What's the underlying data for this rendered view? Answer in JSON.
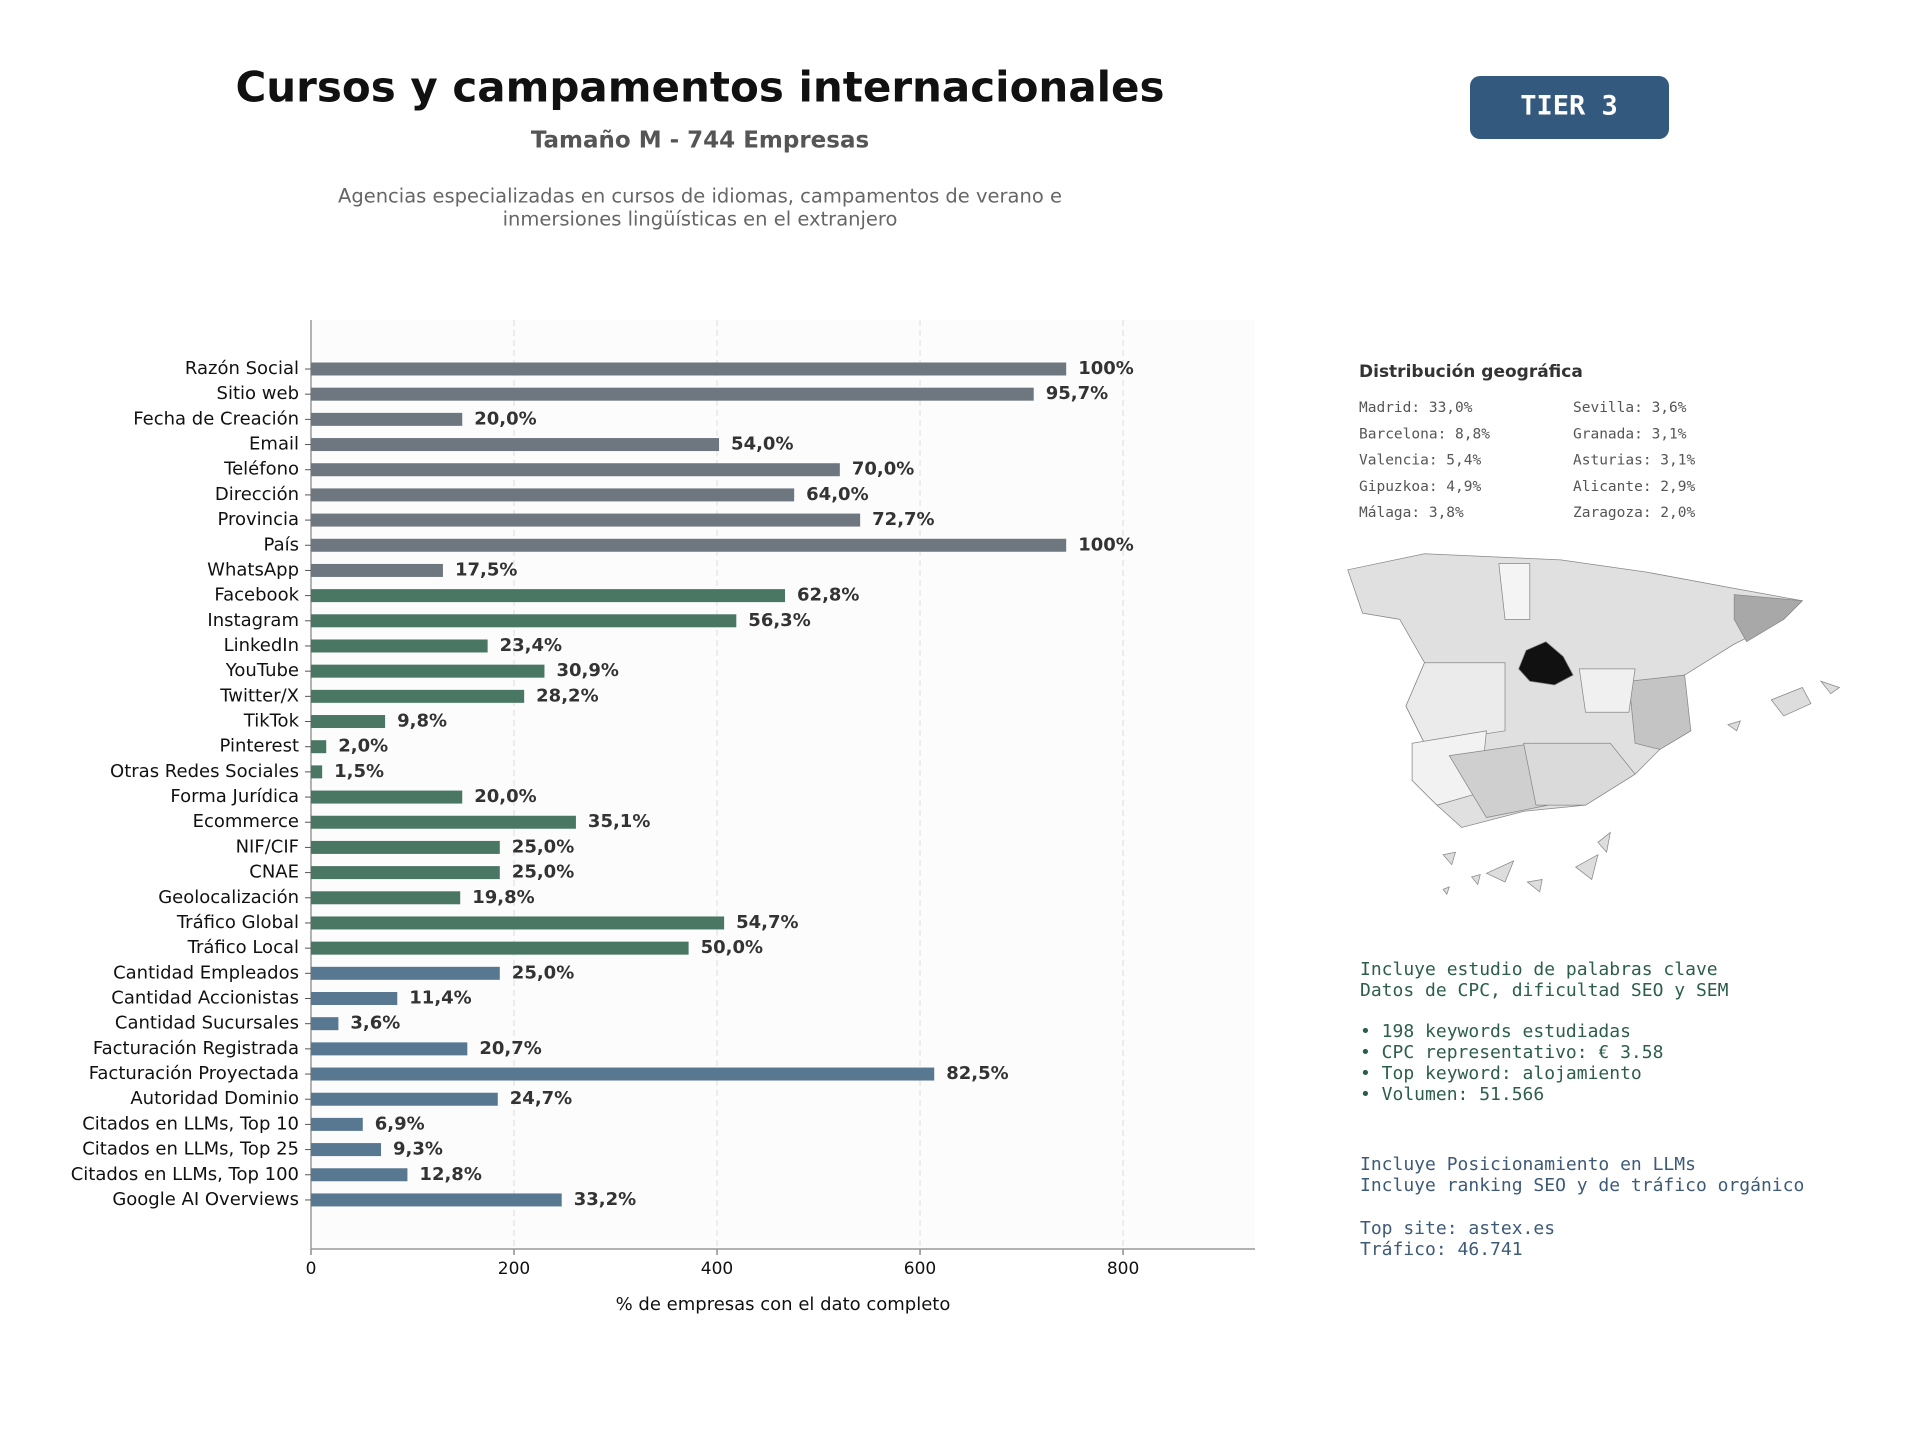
{
  "chart_data": {
    "type": "bar",
    "orientation": "horizontal",
    "title": "Cursos y campamentos internacionales",
    "subtitle": "Tamaño M - 744 Empresas",
    "description": [
      "Agencias especializadas en cursos de idiomas, campamentos de verano e",
      "inmersiones lingüísticas en el extranjero"
    ],
    "categories": [
      "Razón Social",
      "Sitio web",
      "Fecha de Creación",
      "Email",
      "Teléfono",
      "Dirección",
      "Provincia",
      "País",
      "WhatsApp",
      "Facebook",
      "Instagram",
      "LinkedIn",
      "YouTube",
      "Twitter/X",
      "TikTok",
      "Pinterest",
      "Otras Redes Sociales",
      "Forma Jurídica",
      "Ecommerce",
      "NIF/CIF",
      "CNAE",
      "Geolocalización",
      "Tráfico Global",
      "Tráfico Local",
      "Cantidad Empleados",
      "Cantidad Accionistas",
      "Cantidad Sucursales",
      "Facturación Registrada",
      "Facturación Proyectada",
      "Autoridad Dominio",
      "Citados en LLMs, Top 10",
      "Citados en LLMs, Top 25",
      "Citados en LLMs, Top 100",
      "Google AI Overviews"
    ],
    "values": [
      744,
      712,
      149,
      402,
      521,
      476,
      541,
      744,
      130,
      467,
      419,
      174,
      230,
      210,
      73,
      15,
      11,
      149,
      261,
      186,
      186,
      147,
      407,
      372,
      186,
      85,
      27,
      154,
      614,
      184,
      51,
      69,
      95,
      247
    ],
    "value_labels": [
      "100%",
      "95,7%",
      "20,0%",
      "54,0%",
      "70,0%",
      "64,0%",
      "72,7%",
      "100%",
      "17,5%",
      "62,8%",
      "56,3%",
      "23,4%",
      "30,9%",
      "28,2%",
      "9,8%",
      "2,0%",
      "1,5%",
      "20,0%",
      "35,1%",
      "25,0%",
      "25,0%",
      "19,8%",
      "54,7%",
      "50,0%",
      "25,0%",
      "11,4%",
      "3,6%",
      "20,7%",
      "82,5%",
      "24,7%",
      "6,9%",
      "9,3%",
      "12,8%",
      "33,2%"
    ],
    "colors": [
      "#6e7780",
      "#6e7780",
      "#6e7780",
      "#6e7780",
      "#6e7780",
      "#6e7780",
      "#6e7780",
      "#6e7780",
      "#6e7780",
      "#4a7764",
      "#4a7764",
      "#4a7764",
      "#4a7764",
      "#4a7764",
      "#4a7764",
      "#4a7764",
      "#4a7764",
      "#4a7764",
      "#4a7764",
      "#4a7764",
      "#4a7764",
      "#4a7764",
      "#4a7764",
      "#4a7764",
      "#587891",
      "#587891",
      "#587891",
      "#587891",
      "#587891",
      "#587891",
      "#587891",
      "#587891",
      "#587891",
      "#587891"
    ],
    "xlim": [
      0,
      930
    ],
    "xticks": [
      0,
      200,
      400,
      600,
      800
    ],
    "xlabel": "% de empresas con el dato completo",
    "grid": true
  },
  "badge": "TIER 3",
  "geo": {
    "title": "Distribución geográfica",
    "items": [
      "Madrid: 33,0%",
      "Barcelona: 8,8%",
      "Valencia: 5,4%",
      "Gipuzkoa: 4,9%",
      "Málaga: 3,8%",
      "Sevilla: 3,6%",
      "Granada: 3,1%",
      "Asturias: 3,1%",
      "Alicante: 2,9%",
      "Zaragoza: 2,0%"
    ]
  },
  "seo": {
    "intro": [
      "Incluye estudio de palabras clave",
      "Datos de CPC, dificultad SEO y SEM"
    ],
    "bullets": [
      "• 198 keywords estudiadas",
      "• CPC representativo: € 3.58",
      "• Top keyword: alojamiento",
      "• Volumen: 51.566"
    ]
  },
  "llm": {
    "intro": [
      "Incluye Posicionamiento en LLMs",
      "Incluye ranking SEO y de tráfico orgánico"
    ],
    "site": [
      "Top site: astex.es",
      "Tráfico: 46.741"
    ]
  }
}
